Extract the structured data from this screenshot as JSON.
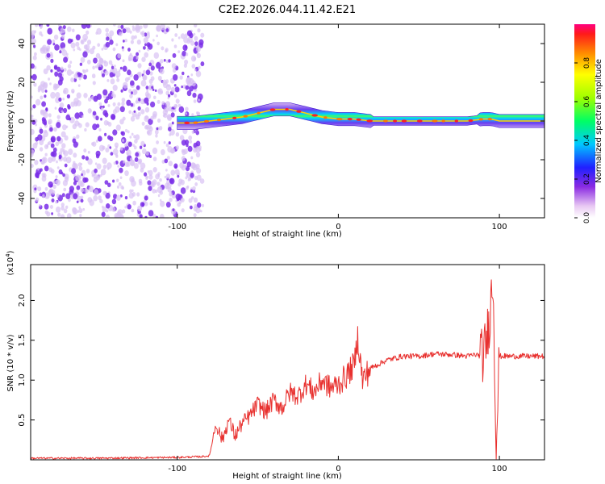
{
  "title": "C2E2.2026.044.11.42.E21",
  "colors": {
    "signal": "#e8312f",
    "noise_strong": "#7a2ee8",
    "noise_weak": "#d9c2f3",
    "axis": "#000000"
  },
  "chart_data": [
    {
      "type": "heatmap",
      "title": "C2E2.2026.044.11.42.E21",
      "xlabel": "Height of straight line (km)",
      "ylabel": "Frequency (Hz)",
      "xlim": [
        -191,
        128
      ],
      "ylim": [
        -50,
        50
      ],
      "xticks": [
        -100,
        0,
        100
      ],
      "xtick_labels": [
        "-100",
        "0",
        "100"
      ],
      "yticks": [
        -40,
        -20,
        0,
        20,
        40
      ],
      "ytick_labels": [
        "-40",
        "-20",
        "0",
        "20",
        "40"
      ],
      "noise_region_x": [
        -191,
        -88
      ],
      "ridge": {
        "description": "spectral ridge near 0 Hz from -100 km to 128 km",
        "x": [
          -100,
          -90,
          -80,
          -70,
          -60,
          -50,
          -40,
          -30,
          -20,
          -10,
          0,
          10,
          20,
          40,
          60,
          80,
          90,
          95,
          100,
          128
        ],
        "y": [
          -1,
          -1,
          0,
          1,
          2,
          4,
          6,
          6,
          4,
          2,
          1,
          1,
          0,
          0,
          0,
          0,
          1,
          1,
          0,
          0
        ]
      },
      "colorbar": {
        "label": "Normalized spectral amplitude",
        "range": [
          0,
          1
        ],
        "ticks": [
          0.0,
          0.2,
          0.4,
          0.6,
          0.8
        ],
        "tick_labels": [
          "0.0",
          "0.2",
          "0.4",
          "0.6",
          "0.8"
        ]
      }
    },
    {
      "type": "line",
      "xlabel": "Height of straight line (km)",
      "ylabel": "SNR (10 * v/v)",
      "multiplier_label": "(x10",
      "multiplier_exp": "4",
      "multiplier_close": ")",
      "xlim": [
        -191,
        128
      ],
      "ylim": [
        0,
        2.45
      ],
      "xticks": [
        -100,
        0,
        100
      ],
      "xtick_labels": [
        "-100",
        "0",
        "100"
      ],
      "yticks": [
        0.5,
        1.0,
        1.5,
        2.0
      ],
      "ytick_labels": [
        "0.5",
        "1.0",
        "1.5",
        "2.0"
      ],
      "series": [
        {
          "name": "SNR",
          "x": [
            -191,
            -150,
            -100,
            -85,
            -80,
            -76,
            -72,
            -68,
            -64,
            -60,
            -55,
            -50,
            -45,
            -40,
            -35,
            -30,
            -25,
            -20,
            -15,
            -10,
            -5,
            0,
            5,
            10,
            12,
            15,
            20,
            30,
            40,
            50,
            60,
            70,
            80,
            85,
            90,
            92,
            94,
            96,
            98,
            100,
            105,
            110,
            128
          ],
          "y": [
            0.02,
            0.02,
            0.03,
            0.04,
            0.05,
            0.45,
            0.25,
            0.5,
            0.3,
            0.45,
            0.55,
            0.7,
            0.6,
            0.75,
            0.65,
            0.85,
            0.8,
            0.95,
            0.85,
            1.0,
            0.9,
            0.95,
            1.05,
            1.2,
            1.55,
            1.0,
            1.15,
            1.25,
            1.3,
            1.3,
            1.33,
            1.32,
            1.3,
            1.32,
            1.3,
            1.5,
            1.8,
            2.3,
            0.2,
            1.3,
            1.3,
            1.3,
            1.3
          ]
        }
      ]
    }
  ]
}
